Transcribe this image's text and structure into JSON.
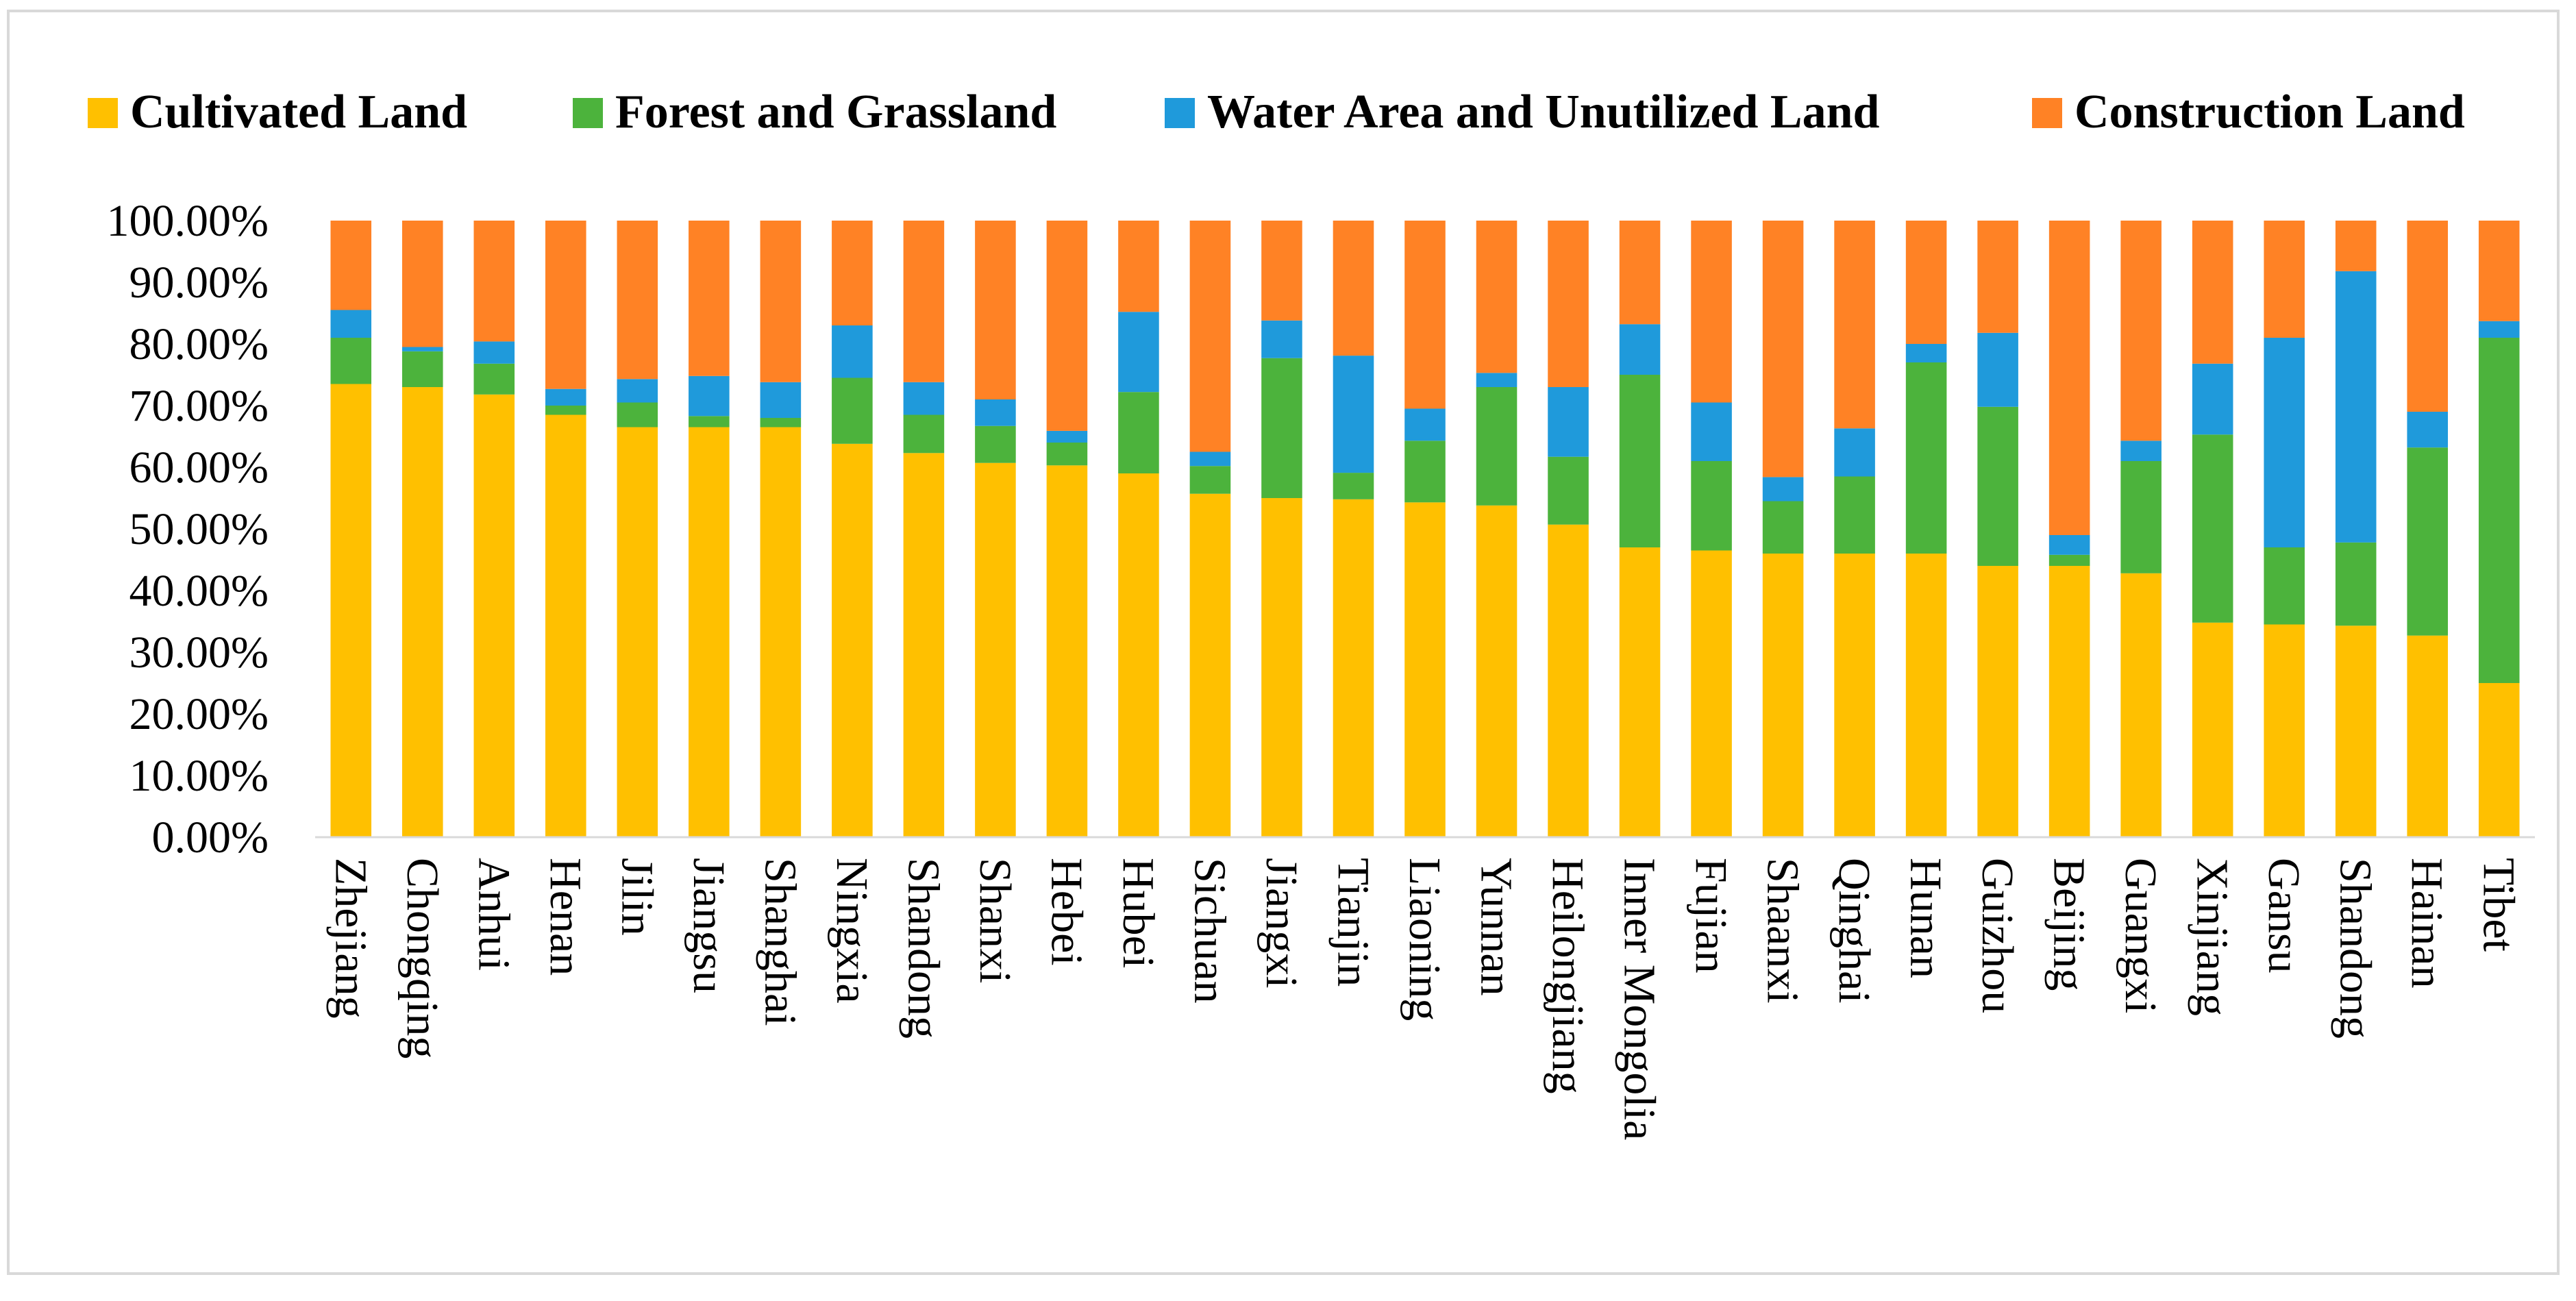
{
  "chart_data": {
    "type": "bar",
    "stacked": true,
    "title": "",
    "xlabel": "",
    "ylabel": "",
    "ylim": [
      0,
      100
    ],
    "y_ticks": [
      "0.00%",
      "10.00%",
      "20.00%",
      "30.00%",
      "40.00%",
      "50.00%",
      "60.00%",
      "70.00%",
      "80.00%",
      "90.00%",
      "100.00%"
    ],
    "legend_position": "top",
    "categories": [
      "Zhejiang",
      "Chongqing",
      "Anhui",
      "Henan",
      "Jilin",
      "Jiangsu",
      "Shanghai",
      "Ningxia",
      "Shandong",
      "Shanxi",
      "Hebei",
      "Hubei",
      "Sichuan",
      "Jiangxi",
      "Tianjin",
      "Liaoning",
      "Yunnan",
      "Heilongjiang",
      "Inner Mongolia",
      "Fujian",
      "Shaanxi",
      "Qinghai",
      "Hunan",
      "Guizhou",
      "Beijing",
      "Guangxi",
      "Xinjiang",
      "Gansu",
      "Shandong",
      "Hainan",
      "Tibet"
    ],
    "series": [
      {
        "name": "Cultivated Land",
        "color": "#FFC000",
        "values": [
          73.5,
          73.0,
          71.8,
          68.5,
          66.5,
          66.5,
          66.5,
          63.8,
          62.3,
          60.7,
          60.3,
          59.0,
          55.7,
          55.0,
          54.8,
          54.3,
          53.8,
          50.7,
          47.0,
          46.5,
          46.0,
          46.0,
          46.0,
          44.0,
          44.0,
          42.8,
          34.8,
          34.5,
          34.3,
          32.7,
          25.0
        ]
      },
      {
        "name": "Forest and Grassland",
        "color": "#4CB33C",
        "values": [
          7.5,
          5.8,
          5.0,
          1.5,
          4.0,
          1.8,
          1.5,
          10.7,
          6.2,
          6.0,
          3.7,
          13.2,
          4.5,
          22.7,
          4.3,
          10.0,
          19.2,
          11.0,
          28.0,
          14.5,
          8.5,
          12.5,
          31.0,
          25.8,
          1.8,
          18.2,
          30.5,
          12.5,
          13.5,
          30.5,
          56.0
        ]
      },
      {
        "name": "Water Area and Unutilized Land",
        "color": "#1F9ADB",
        "values": [
          4.5,
          0.7,
          3.6,
          2.7,
          3.8,
          6.5,
          5.8,
          8.5,
          5.3,
          4.3,
          1.9,
          13.0,
          2.3,
          6.1,
          19.0,
          5.2,
          2.3,
          11.3,
          8.2,
          9.5,
          3.9,
          7.8,
          3.0,
          12.0,
          3.2,
          3.3,
          11.5,
          34.0,
          44.0,
          5.8,
          2.7
        ]
      },
      {
        "name": "Construction Land",
        "color": "#FF8225",
        "values": [
          14.5,
          20.5,
          19.6,
          27.3,
          25.7,
          25.2,
          26.2,
          17.0,
          26.2,
          29.0,
          34.1,
          14.8,
          37.5,
          16.2,
          21.9,
          30.5,
          24.7,
          27.0,
          16.8,
          29.5,
          41.6,
          33.7,
          20.0,
          18.2,
          51.0,
          35.7,
          23.2,
          19.0,
          8.2,
          31.0,
          16.3
        ]
      }
    ]
  }
}
